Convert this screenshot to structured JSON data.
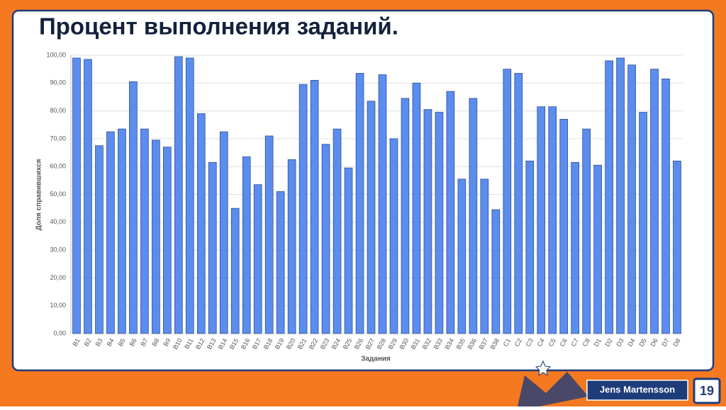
{
  "chart_data": {
    "type": "bar",
    "title": "Процент выполнения заданий.",
    "x_label": "Задания",
    "y_label": "Доля справившихся",
    "categories": [
      "B1",
      "B2",
      "B3",
      "B4",
      "B5",
      "B6",
      "B7",
      "B8",
      "B9",
      "B10",
      "B11",
      "B12",
      "B13",
      "B14",
      "B15",
      "B16",
      "B17",
      "B18",
      "B19",
      "B20",
      "B21",
      "B22",
      "B23",
      "B24",
      "B25",
      "B26",
      "B27",
      "B28",
      "B29",
      "B30",
      "B31",
      "B32",
      "B33",
      "B34",
      "B35",
      "B36",
      "B37",
      "B38",
      "C1",
      "C2",
      "C3",
      "C4",
      "C5",
      "C6",
      "C7",
      "C8",
      "D1",
      "D2",
      "D3",
      "D4",
      "D5",
      "D6",
      "D7",
      "D8"
    ],
    "values": [
      99,
      98.5,
      67.5,
      72.5,
      73.5,
      90.5,
      73.5,
      69.5,
      67,
      99.5,
      99,
      79,
      61.5,
      72.5,
      45,
      63.5,
      53.5,
      71,
      51,
      62.5,
      89.5,
      91,
      68,
      73.5,
      59.5,
      93.5,
      83.5,
      93,
      70,
      84.5,
      90,
      80.5,
      79.5,
      87,
      55.5,
      84.5,
      55.5,
      44.5,
      95,
      93.5,
      62,
      81.5,
      81.5,
      77,
      61.5,
      73.5,
      60.5,
      98,
      99,
      96.5,
      79.5,
      95,
      91.5,
      62
    ],
    "color": "#5b8def",
    "ylim": [
      0,
      100
    ],
    "yticks": [
      {
        "value": 0,
        "label": "0,00"
      },
      {
        "value": 10,
        "label": "10,00"
      },
      {
        "value": 20,
        "label": "20,00"
      },
      {
        "value": 30,
        "label": "30,00"
      },
      {
        "value": 40,
        "label": "40,00"
      },
      {
        "value": 50,
        "label": "50,00"
      },
      {
        "value": 60,
        "label": "60,00"
      },
      {
        "value": 70,
        "label": "70,00"
      },
      {
        "value": 80,
        "label": "80,00"
      },
      {
        "value": 90,
        "label": "90,00"
      },
      {
        "value": 100,
        "label": "100,00"
      }
    ],
    "grid": true
  },
  "footer": {
    "author": "Jens Martensson",
    "page": "19"
  }
}
